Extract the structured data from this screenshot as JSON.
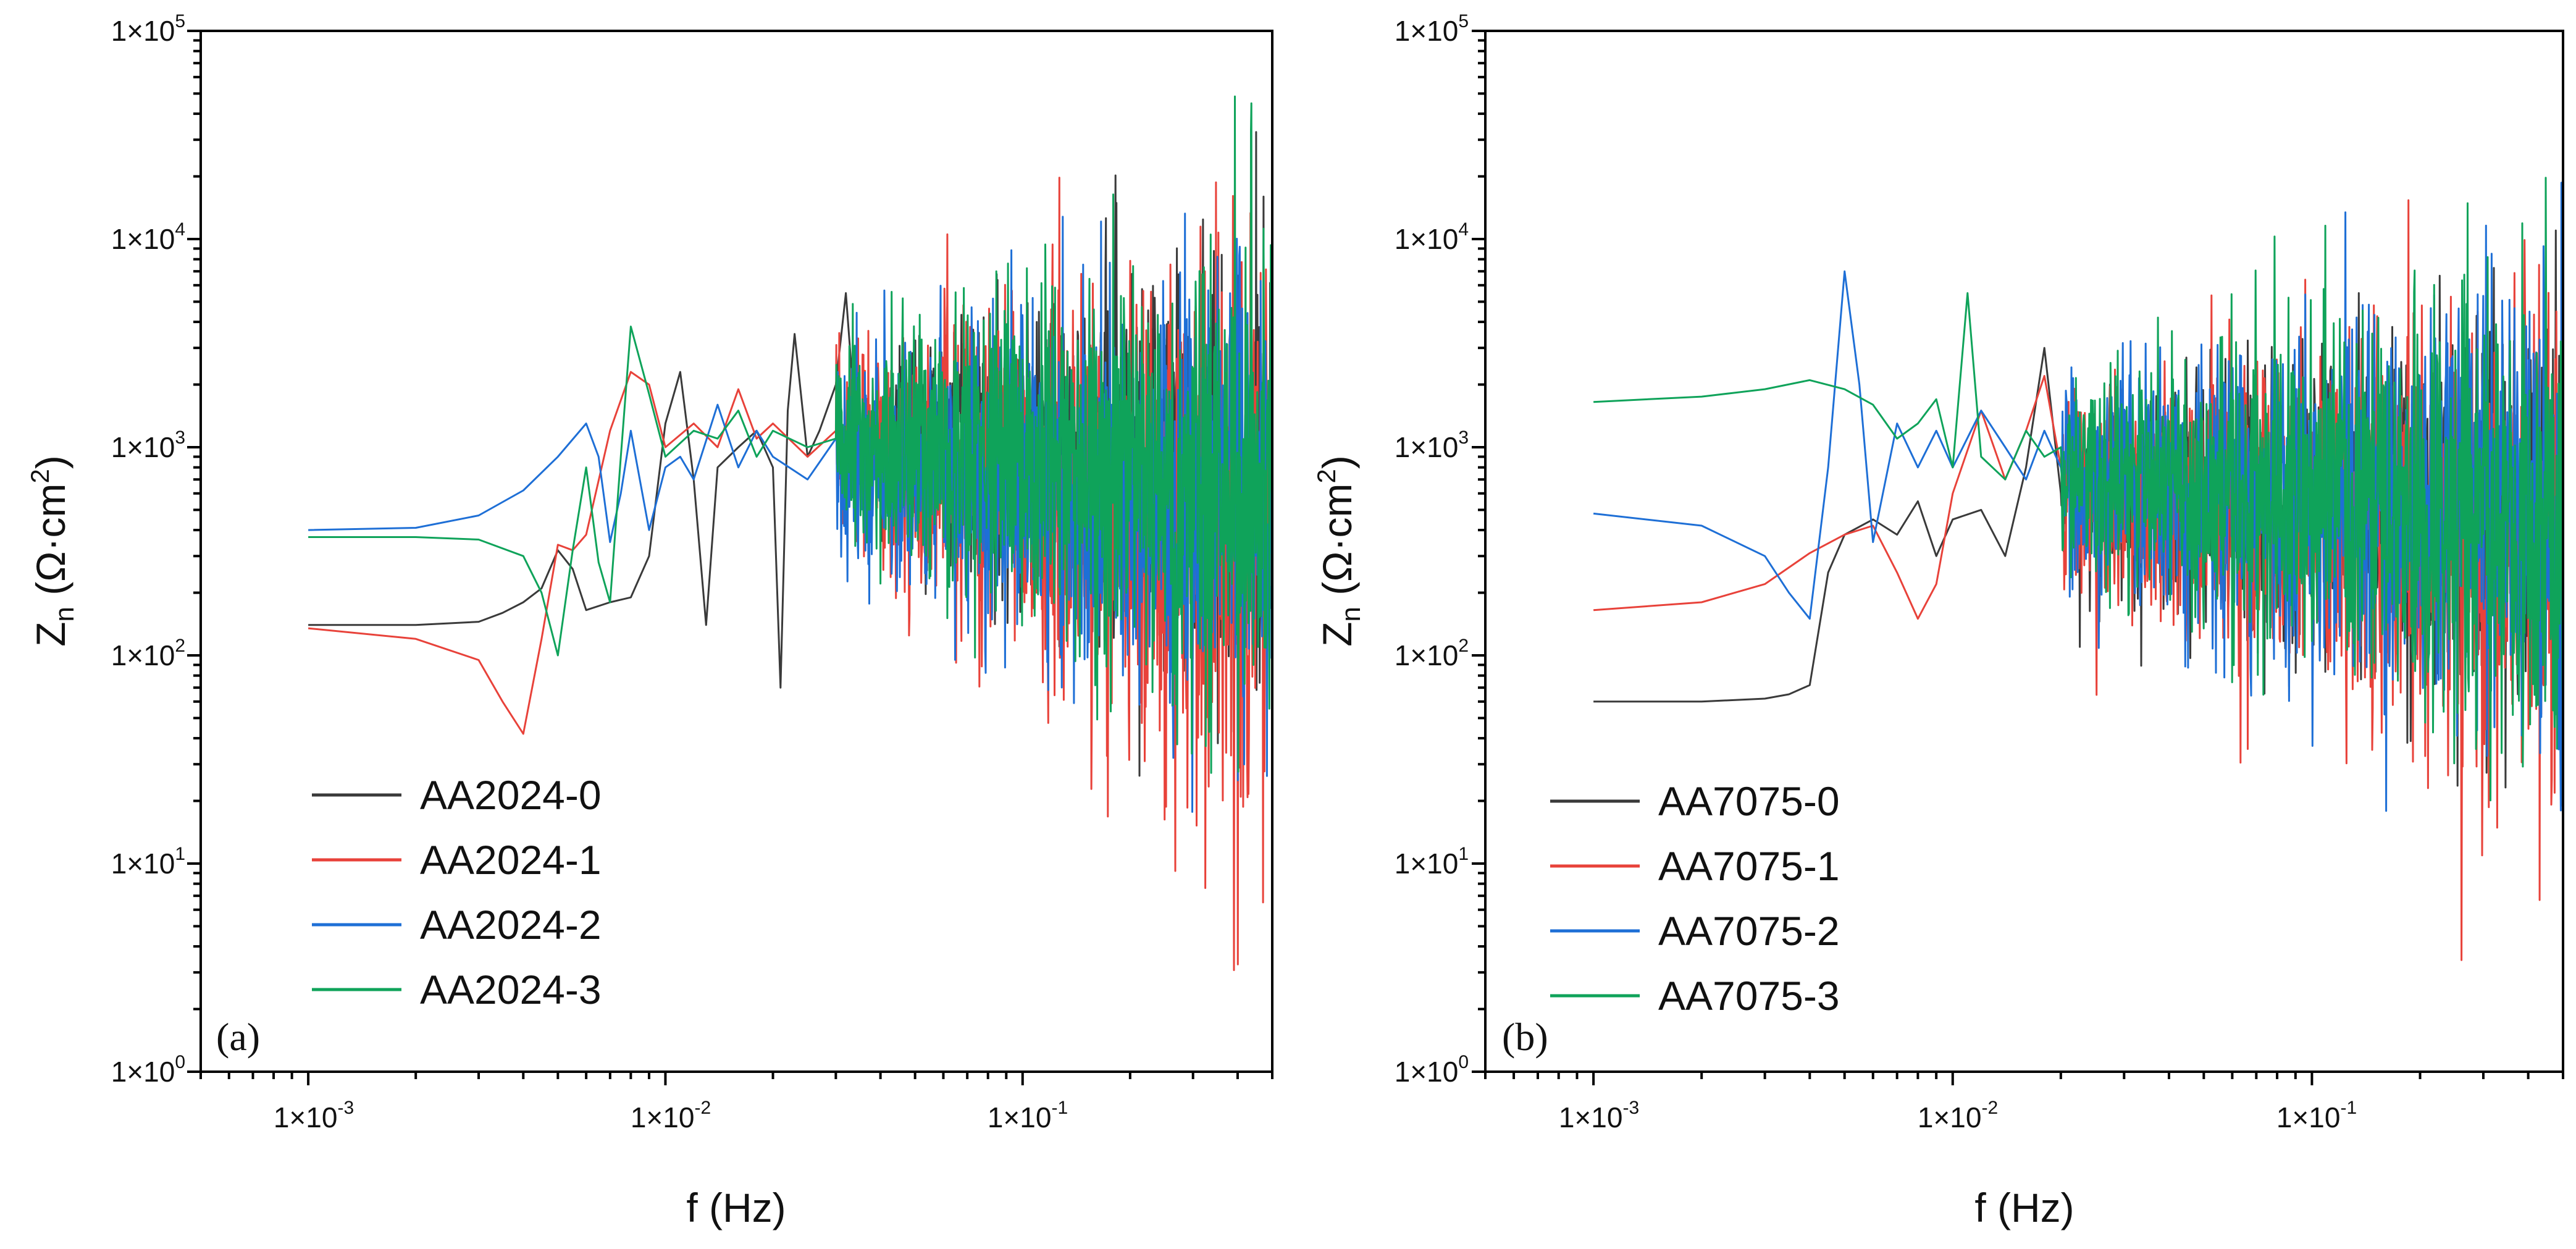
{
  "chart_data": [
    {
      "type": "line",
      "panel_label": "(a)",
      "xlabel": {
        "main": "f (Hz)"
      },
      "ylabel": {
        "main": "Z",
        "sub": "n",
        "unit_open": " (Ω·cm",
        "unit_sup": "2",
        "unit_close": ")"
      },
      "xscale": "log",
      "yscale": "log",
      "xlim": [
        0.0005,
        0.5
      ],
      "ylim": [
        1,
        100000
      ],
      "x_ticks": [
        {
          "base": "1×10",
          "exp": "-3",
          "value": 0.001
        },
        {
          "base": "1×10",
          "exp": "-2",
          "value": 0.01
        },
        {
          "base": "1×10",
          "exp": "-1",
          "value": 0.1
        }
      ],
      "y_ticks": [
        {
          "base": "1×10",
          "exp": "0",
          "value": 1
        },
        {
          "base": "1×10",
          "exp": "1",
          "value": 10
        },
        {
          "base": "1×10",
          "exp": "2",
          "value": 100
        },
        {
          "base": "1×10",
          "exp": "3",
          "value": 1000
        },
        {
          "base": "1×10",
          "exp": "4",
          "value": 10000
        },
        {
          "base": "1×10",
          "exp": "5",
          "value": 100000
        }
      ],
      "legend_position": "bottom-left",
      "series": [
        {
          "name": "AA2024-0",
          "color": "#3a3a3a",
          "seed": 11,
          "x": [
            0.001,
            0.002,
            0.003,
            0.0035,
            0.004,
            0.0045,
            0.005,
            0.0055,
            0.006,
            0.007,
            0.008,
            0.009,
            0.01,
            0.011,
            0.012,
            0.013,
            0.014,
            0.016,
            0.018,
            0.02,
            0.021,
            0.022,
            0.023,
            0.025,
            0.027,
            0.03,
            0.032,
            0.035,
            0.04
          ],
          "values": [
            140,
            140,
            145,
            160,
            180,
            210,
            320,
            260,
            165,
            180,
            190,
            300,
            1300,
            2300,
            700,
            140,
            800,
            1000,
            1200,
            800,
            70,
            1500,
            3500,
            900,
            1200,
            2000,
            5500,
            700,
            1000
          ],
          "noise_start": 0.04,
          "noise_center": [
            1000,
            700
          ],
          "noise_spread": 0.45,
          "noise_spike": 16000
        },
        {
          "name": "AA2024-1",
          "color": "#e8423a",
          "seed": 23,
          "x": [
            0.001,
            0.002,
            0.003,
            0.0035,
            0.004,
            0.0045,
            0.005,
            0.0055,
            0.006,
            0.007,
            0.008,
            0.009,
            0.01,
            0.012,
            0.014,
            0.016,
            0.018,
            0.02,
            0.025,
            0.03
          ],
          "values": [
            135,
            120,
            95,
            60,
            42,
            120,
            340,
            320,
            380,
            1200,
            2300,
            2000,
            1000,
            1300,
            1000,
            1900,
            1100,
            1300,
            900,
            1200
          ],
          "noise_start": 0.03,
          "noise_center": [
            1000,
            300
          ],
          "noise_spread": 0.55,
          "noise_spike": 7000
        },
        {
          "name": "AA2024-2",
          "color": "#1e6fd6",
          "seed": 37,
          "x": [
            0.001,
            0.002,
            0.003,
            0.004,
            0.005,
            0.006,
            0.0065,
            0.007,
            0.0075,
            0.008,
            0.009,
            0.01,
            0.011,
            0.012,
            0.014,
            0.016,
            0.018,
            0.02,
            0.025,
            0.03
          ],
          "values": [
            400,
            410,
            470,
            620,
            900,
            1300,
            900,
            350,
            600,
            1200,
            400,
            800,
            900,
            700,
            1600,
            800,
            1200,
            900,
            700,
            1100
          ],
          "noise_start": 0.03,
          "noise_center": [
            900,
            500
          ],
          "noise_spread": 0.5,
          "noise_spike": 13000
        },
        {
          "name": "AA2024-3",
          "color": "#0fa35a",
          "seed": 51,
          "x": [
            0.001,
            0.002,
            0.003,
            0.004,
            0.0045,
            0.005,
            0.0055,
            0.006,
            0.0065,
            0.007,
            0.0075,
            0.008,
            0.009,
            0.01,
            0.012,
            0.014,
            0.016,
            0.018,
            0.02,
            0.025,
            0.03
          ],
          "values": [
            370,
            370,
            360,
            300,
            200,
            100,
            320,
            800,
            280,
            180,
            900,
            3800,
            1800,
            900,
            1200,
            1100,
            1500,
            900,
            1200,
            1000,
            1100
          ],
          "noise_start": 0.03,
          "noise_center": [
            1000,
            600
          ],
          "noise_spread": 0.5,
          "noise_spike": 33000
        }
      ]
    },
    {
      "type": "line",
      "panel_label": "(b)",
      "xlabel": {
        "main": "f (Hz)"
      },
      "ylabel": {
        "main": "Z",
        "sub": "n",
        "unit_open": " (Ω·cm",
        "unit_sup": "2",
        "unit_close": ")"
      },
      "xscale": "log",
      "yscale": "log",
      "xlim": [
        0.0005,
        0.5
      ],
      "ylim": [
        1,
        100000
      ],
      "x_ticks": [
        {
          "base": "1×10",
          "exp": "-3",
          "value": 0.001
        },
        {
          "base": "1×10",
          "exp": "-2",
          "value": 0.01
        },
        {
          "base": "1×10",
          "exp": "-1",
          "value": 0.1
        }
      ],
      "y_ticks": [
        {
          "base": "1×10",
          "exp": "0",
          "value": 1
        },
        {
          "base": "1×10",
          "exp": "1",
          "value": 10
        },
        {
          "base": "1×10",
          "exp": "2",
          "value": 100
        },
        {
          "base": "1×10",
          "exp": "3",
          "value": 1000
        },
        {
          "base": "1×10",
          "exp": "4",
          "value": 10000
        },
        {
          "base": "1×10",
          "exp": "5",
          "value": 100000
        }
      ],
      "legend_position": "bottom-left",
      "series": [
        {
          "name": "AA7075-0",
          "color": "#3a3a3a",
          "seed": 61,
          "x": [
            0.001,
            0.002,
            0.003,
            0.0035,
            0.004,
            0.0045,
            0.005,
            0.006,
            0.007,
            0.008,
            0.009,
            0.01,
            0.012,
            0.014,
            0.016,
            0.018,
            0.02
          ],
          "values": [
            60,
            60,
            62,
            65,
            72,
            250,
            380,
            450,
            380,
            550,
            300,
            450,
            500,
            300,
            800,
            3000,
            600
          ],
          "noise_start": 0.02,
          "noise_center": [
            600,
            400
          ],
          "noise_spread": 0.45,
          "noise_spike": 11000
        },
        {
          "name": "AA7075-1",
          "color": "#e8423a",
          "seed": 73,
          "x": [
            0.001,
            0.002,
            0.003,
            0.004,
            0.005,
            0.006,
            0.007,
            0.008,
            0.009,
            0.01,
            0.012,
            0.014,
            0.016,
            0.018,
            0.02
          ],
          "values": [
            165,
            180,
            220,
            310,
            380,
            420,
            250,
            150,
            220,
            600,
            1500,
            700,
            1200,
            2200,
            800
          ],
          "noise_start": 0.02,
          "noise_center": [
            600,
            350
          ],
          "noise_spread": 0.5,
          "noise_spike": 4000
        },
        {
          "name": "AA7075-2",
          "color": "#1e6fd6",
          "seed": 89,
          "x": [
            0.001,
            0.002,
            0.003,
            0.0035,
            0.004,
            0.0045,
            0.005,
            0.0055,
            0.006,
            0.007,
            0.008,
            0.009,
            0.01,
            0.012,
            0.014,
            0.016,
            0.018,
            0.02
          ],
          "values": [
            480,
            420,
            300,
            200,
            150,
            800,
            7000,
            2000,
            350,
            1300,
            800,
            1200,
            800,
            1500,
            1000,
            700,
            1200,
            800
          ],
          "noise_start": 0.02,
          "noise_center": [
            700,
            450
          ],
          "noise_spread": 0.5,
          "noise_spike": 8500
        },
        {
          "name": "AA7075-3",
          "color": "#0fa35a",
          "seed": 97,
          "x": [
            0.001,
            0.002,
            0.003,
            0.004,
            0.005,
            0.006,
            0.007,
            0.008,
            0.009,
            0.01,
            0.011,
            0.012,
            0.014,
            0.016,
            0.018,
            0.02
          ],
          "values": [
            1650,
            1750,
            1900,
            2100,
            1900,
            1600,
            1100,
            1300,
            1700,
            800,
            5500,
            900,
            700,
            1200,
            900,
            1000
          ],
          "noise_start": 0.02,
          "noise_center": [
            700,
            450
          ],
          "noise_spread": 0.5,
          "noise_spike": 25000
        }
      ]
    }
  ]
}
